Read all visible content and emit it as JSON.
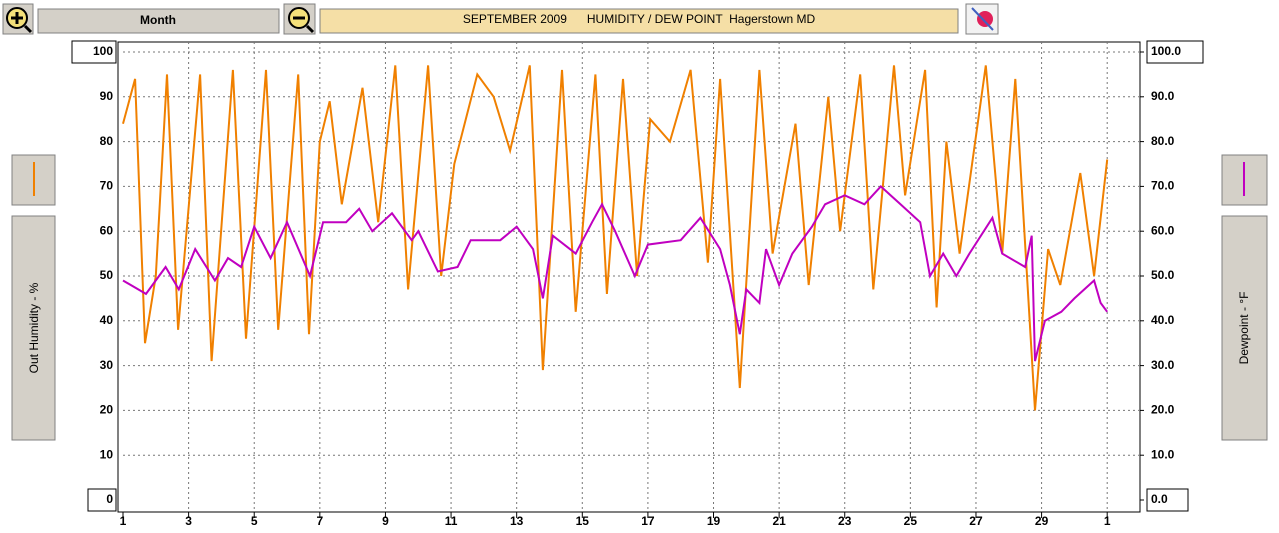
{
  "toolbar": {
    "period": "Month"
  },
  "chart_data": {
    "type": "line",
    "title": "SEPTEMBER 2009      HUMIDITY / DEW POINT  Hagerstown MD",
    "y_label": "Out Humidity - %",
    "y2_label": "Dewpoint - °F",
    "xlim": [
      1,
      32
    ],
    "xticks": [
      1,
      3,
      5,
      7,
      9,
      11,
      13,
      15,
      17,
      19,
      21,
      23,
      25,
      27,
      29,
      {
        "value": 31,
        "label": "1"
      }
    ],
    "ylim": [
      0,
      100
    ],
    "yticks": [
      0,
      10,
      20,
      30,
      40,
      50,
      60,
      70,
      80,
      90,
      100
    ],
    "y2lim": [
      0,
      100
    ],
    "y2ticks": [
      {
        "value": 0,
        "label": "0.0"
      },
      {
        "value": 10,
        "label": "10.0"
      },
      {
        "value": 20,
        "label": "20.0"
      },
      {
        "value": 30,
        "label": "30.0"
      },
      {
        "value": 40,
        "label": "40.0"
      },
      {
        "value": 50,
        "label": "50.0"
      },
      {
        "value": 60,
        "label": "60.0"
      },
      {
        "value": 70,
        "label": "70.0"
      },
      {
        "value": 80,
        "label": "80.0"
      },
      {
        "value": 90,
        "label": "90.0"
      },
      {
        "value": 100,
        "label": "100.0"
      }
    ],
    "grid": true,
    "series": [
      {
        "color": "#f08000",
        "x": [
          1,
          1.37,
          1.67,
          2.0,
          2.34,
          2.68,
          3.35,
          3.7,
          4.35,
          4.75,
          5.36,
          5.73,
          6.34,
          6.67,
          7.0,
          7.3,
          7.67,
          8.3,
          8.78,
          9.3,
          9.69,
          10.3,
          10.7,
          11.1,
          11.8,
          12.3,
          12.8,
          13.4,
          13.8,
          14.38,
          14.8,
          15.4,
          15.75,
          16.24,
          16.67,
          17.07,
          17.67,
          18.3,
          18.83,
          19.2,
          19.8,
          20.4,
          20.8,
          21.5,
          21.9,
          22.5,
          22.86,
          23.47,
          23.87,
          24.5,
          24.84,
          25.45,
          25.8,
          26.1,
          26.5,
          27.3,
          27.8,
          28.2,
          28.8,
          29.2,
          29.57,
          30.18,
          30.6,
          31.0
        ],
        "values": [
          84,
          94,
          35,
          50,
          95,
          38,
          95,
          31,
          96,
          36,
          96,
          38,
          95,
          37,
          80,
          89,
          66,
          92,
          62,
          97,
          47,
          97,
          50,
          75,
          95,
          90,
          78,
          97,
          29,
          96,
          42,
          95,
          46,
          94,
          50,
          85,
          80,
          96,
          53,
          94,
          25,
          96,
          55,
          84,
          48,
          90,
          60,
          95,
          47,
          97,
          68,
          96,
          43,
          80,
          55,
          97,
          55,
          94,
          20,
          56,
          48,
          73,
          50,
          76
        ]
      },
      {
        "color": "#c000c0",
        "axis": "y2",
        "x": [
          1,
          1.7,
          2.3,
          2.7,
          3.2,
          3.8,
          4.2,
          4.6,
          5.0,
          5.5,
          6.0,
          6.7,
          7.1,
          7.8,
          8.2,
          8.6,
          9.2,
          9.8,
          10.0,
          10.6,
          11.2,
          11.6,
          12.5,
          13.0,
          13.5,
          13.8,
          14.1,
          14.8,
          15.3,
          15.6,
          16.0,
          16.6,
          17.0,
          18.0,
          18.6,
          19.2,
          19.5,
          19.8,
          20.0,
          20.4,
          20.6,
          21.0,
          21.4,
          22.0,
          22.4,
          23.0,
          23.6,
          24.1,
          24.7,
          25.3,
          25.6,
          26.0,
          26.4,
          26.8,
          27.5,
          27.8,
          28.5,
          28.7,
          28.8,
          29.1,
          29.6,
          30.0,
          30.6,
          30.8,
          31.0
        ],
        "values": [
          49,
          46,
          52,
          47,
          56,
          49,
          54,
          52,
          61,
          54,
          62,
          50,
          62,
          62,
          65,
          60,
          64,
          58,
          60,
          51,
          52,
          58,
          58,
          61,
          56,
          45,
          59,
          55,
          62,
          66,
          60,
          50,
          57,
          58,
          63,
          56,
          48,
          37,
          47,
          44,
          56,
          48,
          55,
          61,
          66,
          68,
          66,
          70,
          66,
          62,
          50,
          55,
          50,
          55,
          63,
          55,
          52,
          59,
          31,
          40,
          42,
          45,
          49,
          44,
          42
        ]
      }
    ]
  }
}
